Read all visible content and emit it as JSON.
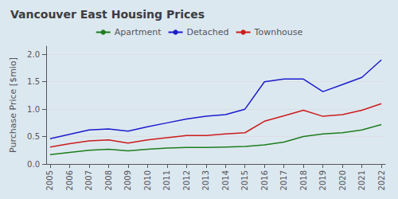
{
  "chart_data": {
    "type": "line",
    "title": "Vancouver East Housing Prices",
    "ylabel": "Purchase Price [$mio]",
    "x": [
      2005,
      2006,
      2007,
      2008,
      2009,
      2010,
      2011,
      2012,
      2013,
      2014,
      2015,
      2016,
      2017,
      2018,
      2019,
      2020,
      2021,
      2022
    ],
    "series": [
      {
        "name": "Apartment",
        "color": "#1e7d1e",
        "values": [
          0.17,
          0.21,
          0.25,
          0.27,
          0.24,
          0.27,
          0.29,
          0.3,
          0.3,
          0.31,
          0.32,
          0.35,
          0.4,
          0.5,
          0.55,
          0.57,
          0.62,
          0.72
        ]
      },
      {
        "name": "Detached",
        "color": "#1c1ccc",
        "values": [
          0.46,
          0.54,
          0.62,
          0.64,
          0.6,
          0.68,
          0.75,
          0.82,
          0.87,
          0.9,
          1.0,
          1.5,
          1.55,
          1.55,
          1.32,
          1.45,
          1.58,
          1.9
        ]
      },
      {
        "name": "Townhouse",
        "color": "#cc1c1c",
        "values": [
          0.31,
          0.37,
          0.42,
          0.44,
          0.38,
          0.44,
          0.48,
          0.52,
          0.52,
          0.55,
          0.57,
          0.78,
          0.88,
          0.98,
          0.87,
          0.9,
          0.98,
          1.1
        ]
      }
    ],
    "xlim": [
      2004.8,
      2022.2
    ],
    "xticks": [
      2005,
      2006,
      2007,
      2008,
      2009,
      2010,
      2011,
      2012,
      2013,
      2014,
      2015,
      2016,
      2017,
      2018,
      2019,
      2020,
      2021,
      2022
    ],
    "ylim": [
      0,
      2.15
    ],
    "yticks": [
      {
        "value": 0,
        "label": "0.0"
      },
      0.5,
      {
        "value": 1,
        "label": "1.0"
      },
      1.5,
      {
        "value": 2,
        "label": "2.0"
      }
    ],
    "grid": true,
    "legend": "top"
  }
}
